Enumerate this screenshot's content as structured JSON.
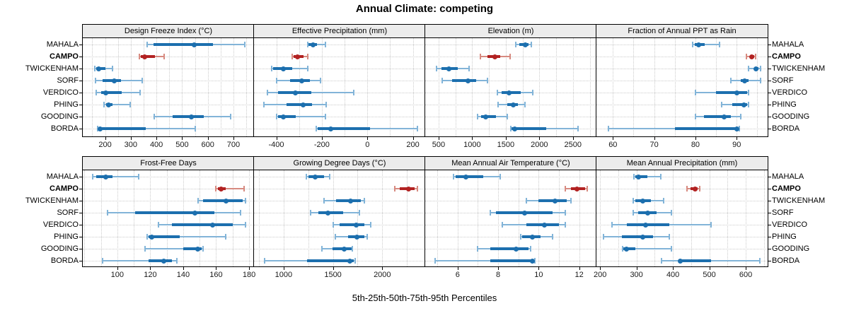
{
  "title": "Annual Climate: competing",
  "caption": "5th-25th-50th-75th-95th Percentiles",
  "sites": [
    "MAHALA",
    "CAMPO",
    "TWICKENHAM",
    "SORF",
    "VERDICO",
    "PHING",
    "GOODING",
    "BORDA"
  ],
  "highlight_site": "CAMPO",
  "percentile_labels": [
    "5th",
    "25th",
    "50th",
    "75th",
    "95th"
  ],
  "colors": {
    "series_blue": "#1c6fae",
    "series_blue_light": "#82b4d8",
    "highlight_red": "#b22222",
    "highlight_red_light": "#d78a80",
    "grid": "#cbcbcb",
    "strip_bg": "#ececec",
    "panel_border": "#000000"
  },
  "chart_data": [
    {
      "type": "scatter",
      "mark": "percentile-interval",
      "title": "Design Freeze Index (°C)",
      "row": 1,
      "col": 1,
      "xlim": [
        113,
        780
      ],
      "ticks": [
        200,
        300,
        400,
        500,
        600,
        700
      ],
      "grid_step": 50,
      "values": [
        [
          363,
          388,
          546,
          620,
          745
        ],
        [
          333,
          338,
          355,
          395,
          430
        ],
        [
          160,
          164,
          176,
          200,
          228
        ],
        [
          162,
          190,
          235,
          262,
          345
        ],
        [
          165,
          185,
          202,
          265,
          335
        ],
        [
          197,
          205,
          214,
          230,
          297
        ],
        [
          390,
          462,
          537,
          585,
          690
        ],
        [
          172,
          174,
          181,
          358,
          550
        ]
      ]
    },
    {
      "type": "scatter",
      "mark": "percentile-interval",
      "title": "Effective Precipitation (mm)",
      "row": 1,
      "col": 2,
      "xlim": [
        -498,
        254
      ],
      "ticks": [
        -400,
        -200,
        0,
        200
      ],
      "grid_step": 100,
      "values": [
        [
          -263,
          -258,
          -237,
          -221,
          -185
        ],
        [
          -330,
          -324,
          -308,
          -282,
          -263
        ],
        [
          -421,
          -413,
          -368,
          -330,
          -263
        ],
        [
          -398,
          -340,
          -288,
          -251,
          -205
        ],
        [
          -438,
          -393,
          -316,
          -245,
          -61
        ],
        [
          -453,
          -356,
          -282,
          -242,
          -182
        ],
        [
          -398,
          -393,
          -368,
          -314,
          -185
        ],
        [
          -224,
          -219,
          -161,
          13,
          221
        ]
      ]
    },
    {
      "type": "scatter",
      "mark": "percentile-interval",
      "title": "Elevation (m)",
      "row": 1,
      "col": 3,
      "xlim": [
        300,
        2850
      ],
      "ticks": [
        500,
        1000,
        1500,
        2000,
        2500
      ],
      "grid_step": 250,
      "values": [
        [
          1650,
          1700,
          1790,
          1840,
          1885
        ],
        [
          1120,
          1230,
          1340,
          1420,
          1560
        ],
        [
          470,
          540,
          650,
          790,
          950
        ],
        [
          550,
          700,
          940,
          1060,
          1230
        ],
        [
          1380,
          1440,
          1550,
          1720,
          1900
        ],
        [
          1390,
          1520,
          1610,
          1680,
          1790
        ],
        [
          1080,
          1130,
          1200,
          1350,
          1520
        ],
        [
          1570,
          1590,
          1630,
          2100,
          2580
        ]
      ]
    },
    {
      "type": "scatter",
      "mark": "percentile-interval",
      "title": "Fraction of Annual PPT as Rain",
      "row": 1,
      "col": 4,
      "xlim": [
        56,
        97.5
      ],
      "ticks": [
        60,
        70,
        80,
        90
      ],
      "grid_step": 5,
      "values": [
        [
          79.4,
          79.8,
          80.8,
          82.3,
          85.9
        ],
        [
          92.3,
          93.2,
          93.7,
          94.2,
          94.5
        ],
        [
          92.9,
          94.2,
          94.6,
          95.2,
          95.7
        ],
        [
          88.6,
          91,
          92,
          92.8,
          95.7
        ],
        [
          80,
          85,
          90,
          92.5,
          92.9
        ],
        [
          86.3,
          88.9,
          91.7,
          92.6,
          92.9
        ],
        [
          80,
          82,
          86.9,
          88.6,
          90.9
        ],
        [
          59,
          75,
          90,
          90.3,
          90.6
        ]
      ]
    },
    {
      "type": "scatter",
      "mark": "percentile-interval",
      "title": "Frost-Free Days",
      "row": 2,
      "col": 1,
      "xlim": [
        79,
        183
      ],
      "ticks": [
        100,
        120,
        140,
        160,
        180
      ],
      "grid_step": 10,
      "values": [
        [
          85,
          87,
          93,
          97,
          113
        ],
        [
          160,
          161,
          163,
          166,
          177
        ],
        [
          149,
          152,
          166,
          176,
          178
        ],
        [
          94,
          111,
          147,
          159,
          175
        ],
        [
          125,
          133,
          158,
          170,
          178
        ],
        [
          118,
          119,
          121,
          138,
          166
        ],
        [
          117,
          140,
          149,
          151,
          152
        ],
        [
          91,
          119,
          128,
          133,
          136
        ]
      ]
    },
    {
      "type": "scatter",
      "mark": "percentile-interval",
      "title": "Growing Degree Days (°C)",
      "row": 2,
      "col": 2,
      "xlim": [
        700,
        2435
      ],
      "ticks": [
        1000,
        1500,
        2000
      ],
      "grid_step": 250,
      "values": [
        [
          1234,
          1253,
          1320,
          1410,
          1465
        ],
        [
          2128,
          2180,
          2263,
          2330,
          2355
        ],
        [
          1410,
          1530,
          1682,
          1783,
          1819
        ],
        [
          1277,
          1350,
          1446,
          1600,
          1770
        ],
        [
          1500,
          1570,
          1735,
          1820,
          1880
        ],
        [
          1525,
          1650,
          1740,
          1820,
          1845
        ],
        [
          1390,
          1494,
          1615,
          1687,
          1699
        ],
        [
          807,
          1241,
          1675,
          1711,
          1723
        ]
      ]
    },
    {
      "type": "scatter",
      "mark": "percentile-interval",
      "title": "Mean Annual Air Temperature (°C)",
      "row": 2,
      "col": 3,
      "xlim": [
        4.4,
        12.85
      ],
      "ticks": [
        6,
        8,
        10,
        12
      ],
      "grid_step": 1,
      "values": [
        [
          5.8,
          5.9,
          6.4,
          7.25,
          8.1
        ],
        [
          11.3,
          11.6,
          11.9,
          12.3,
          12.4
        ],
        [
          9.4,
          10,
          10.8,
          11.4,
          11.6
        ],
        [
          7.6,
          7.9,
          9.3,
          10.7,
          11.3
        ],
        [
          8.2,
          9.4,
          10.3,
          11,
          11.3
        ],
        [
          9.1,
          9.2,
          9.7,
          10.1,
          10.7
        ],
        [
          7,
          7.6,
          8.9,
          9.5,
          9.6
        ],
        [
          4.9,
          7.6,
          9.7,
          9.75,
          9.8
        ]
      ]
    },
    {
      "type": "scatter",
      "mark": "percentile-interval",
      "title": "Mean Annual Precipitation (mm)",
      "row": 2,
      "col": 4,
      "xlim": [
        190,
        660
      ],
      "ticks": [
        200,
        300,
        400,
        500,
        600
      ],
      "grid_step": 50,
      "values": [
        [
          292,
          296,
          306,
          330,
          366
        ],
        [
          438,
          448,
          460,
          468,
          473
        ],
        [
          291,
          296,
          318,
          340,
          375
        ],
        [
          291,
          305,
          330,
          355,
          395
        ],
        [
          232,
          273,
          325,
          390,
          505
        ],
        [
          210,
          260,
          318,
          345,
          390
        ],
        [
          262,
          264,
          272,
          296,
          396
        ],
        [
          368,
          415,
          420,
          505,
          638
        ]
      ]
    }
  ]
}
